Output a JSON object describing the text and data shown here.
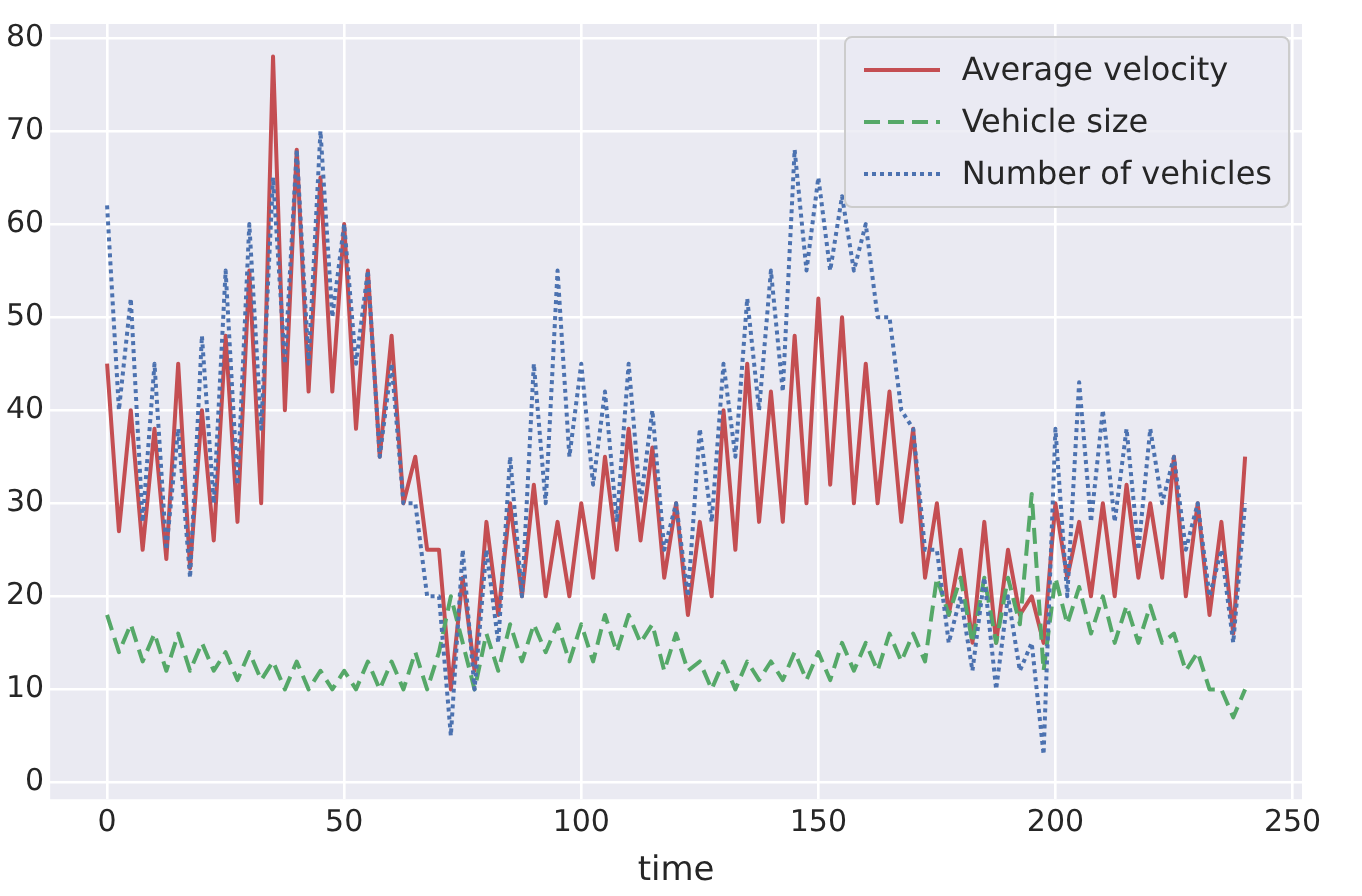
{
  "chart_data": {
    "type": "line",
    "xlabel": "time",
    "x": [
      0,
      2.5,
      5,
      7.5,
      10,
      12.5,
      15,
      17.5,
      20,
      22.5,
      25,
      27.5,
      30,
      32.5,
      35,
      37.5,
      40,
      42.5,
      45,
      47.5,
      50,
      52.5,
      55,
      57.5,
      60,
      62.5,
      65,
      67.5,
      70,
      72.5,
      75,
      77.5,
      80,
      82.5,
      85,
      87.5,
      90,
      92.5,
      95,
      97.5,
      100,
      102.5,
      105,
      107.5,
      110,
      112.5,
      115,
      117.5,
      120,
      122.5,
      125,
      127.5,
      130,
      132.5,
      135,
      137.5,
      140,
      142.5,
      145,
      147.5,
      150,
      152.5,
      155,
      157.5,
      160,
      162.5,
      165,
      167.5,
      170,
      172.5,
      175,
      177.5,
      180,
      182.5,
      185,
      187.5,
      190,
      192.5,
      195,
      197.5,
      200,
      202.5,
      205,
      207.5,
      210,
      212.5,
      215,
      217.5,
      220,
      222.5,
      225,
      227.5,
      230,
      232.5,
      235,
      237.5,
      240
    ],
    "series": [
      {
        "name": "Average velocity",
        "color": "#c44e52",
        "line_style": "solid",
        "values": [
          45,
          27,
          40,
          25,
          38,
          24,
          45,
          23,
          40,
          26,
          48,
          28,
          55,
          30,
          78,
          40,
          68,
          42,
          65,
          42,
          60,
          38,
          55,
          35,
          48,
          30,
          35,
          25,
          25,
          10,
          22,
          12,
          28,
          18,
          30,
          20,
          32,
          20,
          28,
          20,
          30,
          22,
          35,
          25,
          38,
          26,
          36,
          22,
          30,
          18,
          28,
          20,
          40,
          25,
          45,
          28,
          42,
          28,
          48,
          30,
          52,
          32,
          50,
          30,
          45,
          30,
          42,
          28,
          38,
          22,
          30,
          18,
          25,
          15,
          28,
          15,
          25,
          18,
          20,
          15,
          30,
          22,
          28,
          20,
          30,
          20,
          32,
          22,
          30,
          22,
          35,
          20,
          30,
          18,
          28,
          16,
          35
        ]
      },
      {
        "name": "Vehicle size",
        "color": "#55a868",
        "line_style": "dashed",
        "values": [
          18,
          14,
          17,
          13,
          16,
          12,
          16,
          12,
          15,
          12,
          14,
          11,
          14,
          11,
          13,
          10,
          13,
          10,
          12,
          10,
          12,
          10,
          13,
          10,
          13,
          10,
          14,
          10,
          14,
          20,
          15,
          10,
          16,
          12,
          17,
          13,
          17,
          14,
          17,
          13,
          17,
          13,
          18,
          14,
          18,
          15,
          17,
          12,
          16,
          12,
          13,
          10,
          13,
          10,
          13,
          11,
          13,
          11,
          14,
          11,
          14,
          11,
          15,
          12,
          15,
          12,
          16,
          13,
          16,
          13,
          22,
          18,
          22,
          15,
          22,
          15,
          22,
          17,
          31,
          12,
          22,
          17,
          21,
          16,
          20,
          15,
          19,
          15,
          19,
          15,
          16,
          12,
          14,
          10,
          10,
          7,
          10
        ]
      },
      {
        "name": "Number of vehicles",
        "color": "#4c72b0",
        "line_style": "dotted",
        "values": [
          62,
          40,
          52,
          28,
          45,
          25,
          38,
          22,
          48,
          30,
          55,
          32,
          60,
          38,
          65,
          45,
          68,
          45,
          70,
          50,
          60,
          45,
          55,
          35,
          45,
          30,
          30,
          20,
          20,
          5,
          25,
          10,
          25,
          15,
          35,
          20,
          45,
          30,
          55,
          35,
          45,
          32,
          42,
          28,
          45,
          30,
          40,
          25,
          30,
          20,
          38,
          28,
          45,
          35,
          52,
          40,
          55,
          42,
          68,
          55,
          65,
          55,
          63,
          55,
          60,
          50,
          50,
          40,
          38,
          25,
          25,
          15,
          20,
          12,
          22,
          10,
          20,
          12,
          15,
          3,
          38,
          20,
          43,
          28,
          40,
          28,
          38,
          25,
          38,
          30,
          35,
          25,
          30,
          20,
          25,
          15,
          30
        ]
      }
    ],
    "xlim": [
      -12,
      252
    ],
    "xticks": [
      0,
      50,
      100,
      150,
      200,
      250
    ],
    "ylim": [
      -1.8,
      81.5
    ],
    "yticks": [
      0,
      10,
      20,
      30,
      40,
      50,
      60,
      70,
      80
    ],
    "grid": true,
    "legend": "top right"
  }
}
